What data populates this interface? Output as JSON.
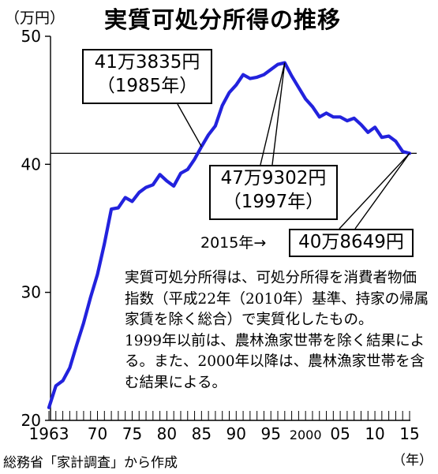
{
  "title": "実質可処分所得の推移",
  "unit_label": "（万円）",
  "x_unit_label": "（年）",
  "source": "総務省「家計調査」から作成",
  "callouts": {
    "y1985": {
      "value": "41万3835円",
      "year": "（1985年）"
    },
    "y1997": {
      "value": "47万9302円",
      "year": "（1997年）"
    },
    "y2015": {
      "prefix": "2015年→",
      "value": "40万8649円"
    }
  },
  "note": {
    "line1": "実質可処分所得は、可処分所得を消費者物価指数（平成22年（2010年）基準、持家の帰属家賃を除く総合）で実質化したもの。",
    "line2": "1999年以前は、農林漁家世帯を除く結果による。また、2000年以降は、農林漁家世帯を含む結果による。"
  },
  "colors": {
    "line": "#2222dd",
    "axis": "#000000",
    "reference": "#000000"
  },
  "chart_data": {
    "type": "line",
    "title": "実質可処分所得の推移",
    "xlabel": "（年）",
    "ylabel": "（万円）",
    "xlim": [
      1963,
      2015
    ],
    "ylim": [
      20,
      50
    ],
    "y_ticks": [
      {
        "value": 20,
        "label": "20"
      },
      {
        "value": 30,
        "label": "30"
      },
      {
        "value": 40,
        "label": "40"
      },
      {
        "value": 50,
        "label": "50"
      }
    ],
    "x_ticks": [
      {
        "value": 1963,
        "label": "1963"
      },
      {
        "value": 1970,
        "label": "70"
      },
      {
        "value": 1975,
        "label": "75"
      },
      {
        "value": 1980,
        "label": "80"
      },
      {
        "value": 1985,
        "label": "85"
      },
      {
        "value": 1990,
        "label": "90"
      },
      {
        "value": 1995,
        "label": "95"
      },
      {
        "value": 2000,
        "label": "2000"
      },
      {
        "value": 2005,
        "label": "05"
      },
      {
        "value": 2010,
        "label": "10"
      },
      {
        "value": 2015,
        "label": "15"
      }
    ],
    "reference_line": 40.86,
    "grid": false,
    "series": [
      {
        "x": [
          1963,
          1964,
          1965,
          1966,
          1967,
          1968,
          1969,
          1970,
          1971,
          1972,
          1973,
          1974,
          1975,
          1976,
          1977,
          1978,
          1979,
          1980,
          1981,
          1982,
          1983,
          1984,
          1985,
          1986,
          1987,
          1988,
          1989,
          1990,
          1991,
          1992,
          1993,
          1994,
          1995,
          1996,
          1997,
          1998,
          1999,
          2000,
          2001,
          2002,
          2003,
          2004,
          2005,
          2006,
          2007,
          2008,
          2009,
          2010,
          2011,
          2012,
          2013,
          2014,
          2015
        ],
        "y": [
          21.0,
          22.7,
          23.1,
          24.1,
          25.9,
          27.6,
          29.6,
          31.4,
          33.8,
          36.5,
          36.6,
          37.4,
          37.1,
          37.8,
          38.2,
          38.4,
          39.2,
          38.7,
          38.3,
          39.3,
          39.6,
          40.4,
          41.38,
          42.3,
          43.0,
          44.6,
          45.6,
          46.2,
          47.0,
          46.7,
          46.8,
          47.0,
          47.4,
          47.8,
          47.93,
          46.9,
          46.0,
          45.1,
          44.5,
          43.7,
          44.0,
          43.7,
          43.7,
          43.4,
          43.6,
          43.1,
          42.5,
          42.9,
          42.1,
          42.2,
          41.8,
          41.0,
          40.86
        ]
      }
    ]
  }
}
